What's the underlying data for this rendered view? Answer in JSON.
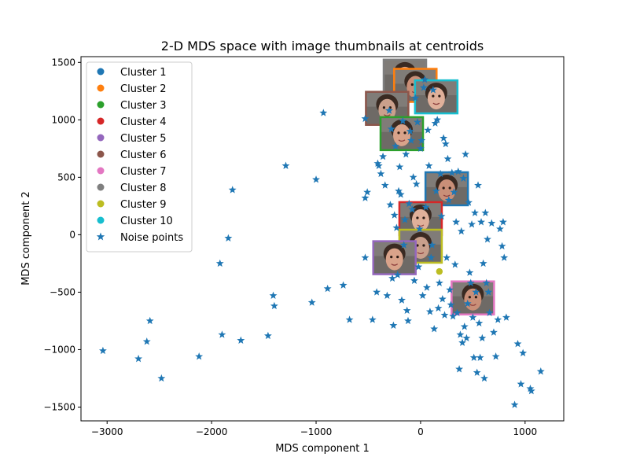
{
  "chart_data": {
    "type": "scatter",
    "title": "2-D MDS space with image thumbnails at centroids",
    "xlabel": "MDS component 1",
    "ylabel": "MDS component 2",
    "xlim": [
      -3250,
      1370
    ],
    "ylim": [
      -1620,
      1550
    ],
    "xticks": [
      -3000,
      -2000,
      -1000,
      0,
      1000
    ],
    "yticks": [
      -1500,
      -1000,
      -500,
      0,
      500,
      1000,
      1500
    ],
    "grid": false,
    "legend_position": "top-left",
    "clusters": [
      {
        "name": "Cluster 1",
        "color": "#1f77b4",
        "centroid": [
          250,
          400
        ],
        "points": [
          [
            230,
            420
          ],
          [
            280,
            380
          ],
          [
            210,
            450
          ],
          [
            300,
            440
          ],
          [
            250,
            360
          ]
        ]
      },
      {
        "name": "Cluster 2",
        "color": "#ff7f0e",
        "centroid": [
          -50,
          1300
        ],
        "points": [
          [
            -80,
            1340
          ],
          [
            -30,
            1270
          ],
          [
            -60,
            1300
          ],
          [
            20,
            1320
          ]
        ]
      },
      {
        "name": "Cluster 3",
        "color": "#2ca02c",
        "centroid": [
          -180,
          880
        ],
        "points": [
          [
            -150,
            1050
          ],
          [
            -250,
            830
          ],
          [
            -180,
            860
          ],
          [
            -120,
            820
          ],
          [
            -200,
            870
          ]
        ]
      },
      {
        "name": "Cluster 4",
        "color": "#d62728",
        "centroid": [
          0,
          140
        ],
        "points": [
          [
            -60,
            240
          ],
          [
            30,
            200
          ],
          [
            20,
            100
          ],
          [
            -20,
            70
          ],
          [
            40,
            30
          ]
        ]
      },
      {
        "name": "Cluster 5",
        "color": "#9467bd",
        "centroid": [
          -250,
          -200
        ],
        "points": [
          [
            -280,
            -180
          ],
          [
            -230,
            -220
          ],
          [
            -260,
            -250
          ]
        ]
      },
      {
        "name": "Cluster 6",
        "color": "#8c564b",
        "centroid": [
          -320,
          1100
        ],
        "points": [
          [
            -330,
            1130
          ],
          [
            -280,
            1080
          ],
          [
            -350,
            1060
          ]
        ]
      },
      {
        "name": "Cluster 7",
        "color": "#e377c2",
        "centroid": [
          500,
          -550
        ],
        "points": [
          [
            480,
            -520
          ],
          [
            540,
            -580
          ],
          [
            520,
            -560
          ],
          [
            460,
            -590
          ]
        ]
      },
      {
        "name": "Cluster 8",
        "color": "#7f7f7f",
        "centroid": [
          -150,
          1380
        ],
        "points": [
          [
            -150,
            1380
          ],
          [
            -120,
            1400
          ]
        ]
      },
      {
        "name": "Cluster 9",
        "color": "#bcbd22",
        "centroid": [
          0,
          -100
        ],
        "points": [
          [
            180,
            -320
          ],
          [
            20,
            -120
          ],
          [
            -30,
            -80
          ]
        ]
      },
      {
        "name": "Cluster 10",
        "color": "#17becf",
        "centroid": [
          150,
          1200
        ],
        "points": [
          [
            130,
            1180
          ],
          [
            180,
            1210
          ],
          [
            120,
            1230
          ]
        ]
      }
    ],
    "noise": {
      "name": "Noise points",
      "color": "#1f77b4",
      "points": [
        [
          -3040,
          -1010
        ],
        [
          -2700,
          -1080
        ],
        [
          -2620,
          -930
        ],
        [
          -2590,
          -750
        ],
        [
          -2480,
          -1250
        ],
        [
          -2120,
          -1060
        ],
        [
          -1920,
          -250
        ],
        [
          -1900,
          -870
        ],
        [
          -1840,
          -30
        ],
        [
          -1800,
          390
        ],
        [
          -1720,
          -920
        ],
        [
          -1460,
          -880
        ],
        [
          -1410,
          -530
        ],
        [
          -1400,
          -620
        ],
        [
          -1290,
          600
        ],
        [
          -1040,
          -590
        ],
        [
          -1000,
          480
        ],
        [
          -930,
          1060
        ],
        [
          -890,
          -470
        ],
        [
          -740,
          -440
        ],
        [
          -680,
          -740
        ],
        [
          -530,
          1010
        ],
        [
          -530,
          320
        ],
        [
          -510,
          370
        ],
        [
          -530,
          -200
        ],
        [
          -460,
          -740
        ],
        [
          -420,
          -500
        ],
        [
          -410,
          620
        ],
        [
          -400,
          600
        ],
        [
          -380,
          530
        ],
        [
          -360,
          680
        ],
        [
          -340,
          430
        ],
        [
          -320,
          -530
        ],
        [
          -300,
          1080
        ],
        [
          -290,
          260
        ],
        [
          -280,
          920
        ],
        [
          -270,
          -380
        ],
        [
          -260,
          -790
        ],
        [
          -250,
          170
        ],
        [
          -240,
          770
        ],
        [
          -230,
          60
        ],
        [
          -220,
          -350
        ],
        [
          -210,
          380
        ],
        [
          -200,
          590
        ],
        [
          -190,
          350
        ],
        [
          -180,
          -570
        ],
        [
          -170,
          990
        ],
        [
          -160,
          -90
        ],
        [
          -150,
          130
        ],
        [
          -140,
          700
        ],
        [
          -130,
          -660
        ],
        [
          -120,
          -750
        ],
        [
          -110,
          270
        ],
        [
          -100,
          900
        ],
        [
          -90,
          820
        ],
        [
          -80,
          220
        ],
        [
          -70,
          500
        ],
        [
          -60,
          -400
        ],
        [
          -50,
          1190
        ],
        [
          -40,
          440
        ],
        [
          -30,
          980
        ],
        [
          -20,
          -280
        ],
        [
          -10,
          50
        ],
        [
          0,
          750
        ],
        [
          10,
          820
        ],
        [
          20,
          -530
        ],
        [
          30,
          1280
        ],
        [
          40,
          1350
        ],
        [
          50,
          240
        ],
        [
          60,
          -460
        ],
        [
          70,
          910
        ],
        [
          80,
          600
        ],
        [
          90,
          -670
        ],
        [
          100,
          -200
        ],
        [
          110,
          -90
        ],
        [
          120,
          1260
        ],
        [
          130,
          -820
        ],
        [
          140,
          970
        ],
        [
          150,
          380
        ],
        [
          160,
          1000
        ],
        [
          170,
          -640
        ],
        [
          180,
          -420
        ],
        [
          190,
          530
        ],
        [
          200,
          160
        ],
        [
          210,
          -560
        ],
        [
          220,
          840
        ],
        [
          230,
          -700
        ],
        [
          240,
          790
        ],
        [
          250,
          -200
        ],
        [
          260,
          660
        ],
        [
          270,
          300
        ],
        [
          280,
          -480
        ],
        [
          290,
          -610
        ],
        [
          300,
          540
        ],
        [
          310,
          -710
        ],
        [
          320,
          370
        ],
        [
          330,
          -260
        ],
        [
          340,
          110
        ],
        [
          350,
          -680
        ],
        [
          360,
          550
        ],
        [
          370,
          -1170
        ],
        [
          380,
          -870
        ],
        [
          390,
          30
        ],
        [
          400,
          -940
        ],
        [
          410,
          490
        ],
        [
          420,
          -800
        ],
        [
          430,
          700
        ],
        [
          440,
          -900
        ],
        [
          450,
          -600
        ],
        [
          460,
          280
        ],
        [
          470,
          -330
        ],
        [
          480,
          -420
        ],
        [
          490,
          90
        ],
        [
          500,
          -720
        ],
        [
          510,
          -1070
        ],
        [
          520,
          190
        ],
        [
          530,
          -500
        ],
        [
          540,
          -1200
        ],
        [
          550,
          430
        ],
        [
          560,
          -770
        ],
        [
          570,
          -1070
        ],
        [
          580,
          110
        ],
        [
          590,
          -900
        ],
        [
          600,
          -250
        ],
        [
          610,
          -1250
        ],
        [
          620,
          190
        ],
        [
          630,
          -420
        ],
        [
          640,
          -40
        ],
        [
          650,
          -500
        ],
        [
          660,
          -680
        ],
        [
          680,
          100
        ],
        [
          700,
          -850
        ],
        [
          720,
          -1060
        ],
        [
          740,
          -740
        ],
        [
          760,
          50
        ],
        [
          780,
          -100
        ],
        [
          790,
          110
        ],
        [
          800,
          -200
        ],
        [
          820,
          -720
        ],
        [
          900,
          -1480
        ],
        [
          930,
          -950
        ],
        [
          960,
          -1300
        ],
        [
          980,
          -1030
        ],
        [
          1050,
          -1340
        ],
        [
          1060,
          -1360
        ],
        [
          1150,
          -1190
        ]
      ]
    },
    "thumbnails": [
      {
        "cluster": "Cluster 8",
        "cx": -150,
        "cy": 1380
      },
      {
        "cluster": "Cluster 2",
        "cx": -50,
        "cy": 1300
      },
      {
        "cluster": "Cluster 10",
        "cx": 150,
        "cy": 1200
      },
      {
        "cluster": "Cluster 6",
        "cx": -320,
        "cy": 1100
      },
      {
        "cluster": "Cluster 3",
        "cx": -180,
        "cy": 880
      },
      {
        "cluster": "Cluster 1",
        "cx": 250,
        "cy": 400
      },
      {
        "cluster": "Cluster 4",
        "cx": 0,
        "cy": 140
      },
      {
        "cluster": "Cluster 9",
        "cx": 0,
        "cy": -100
      },
      {
        "cluster": "Cluster 5",
        "cx": -250,
        "cy": -200
      },
      {
        "cluster": "Cluster 7",
        "cx": 500,
        "cy": -550
      }
    ]
  }
}
